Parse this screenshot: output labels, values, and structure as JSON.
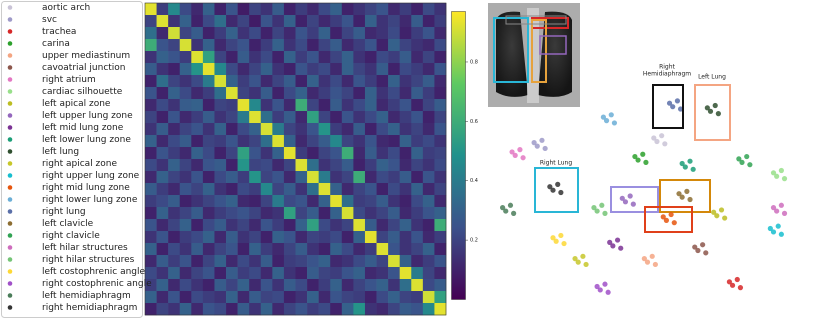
{
  "chart_data": [
    {
      "type": "heatmap",
      "colormap": "viridis",
      "clim": [
        0,
        0.97
      ],
      "cticks": [
        0.2,
        0.4,
        0.6,
        0.8
      ],
      "values": [
        [
          0.93,
          0.18,
          0.45,
          0.22,
          0.12,
          0.3,
          0.1,
          0.25,
          0.08,
          0.2,
          0.15,
          0.28,
          0.1,
          0.18,
          0.12,
          0.22,
          0.3,
          0.1,
          0.15,
          0.2,
          0.25,
          0.12,
          0.18,
          0.1,
          0.22,
          0.15
        ],
        [
          0.2,
          0.92,
          0.15,
          0.3,
          0.1,
          0.22,
          0.35,
          0.12,
          0.2,
          0.08,
          0.25,
          0.15,
          0.3,
          0.1,
          0.2,
          0.12,
          0.18,
          0.25,
          0.1,
          0.3,
          0.15,
          0.2,
          0.12,
          0.28,
          0.1,
          0.18
        ],
        [
          0.35,
          0.12,
          0.9,
          0.2,
          0.28,
          0.1,
          0.18,
          0.3,
          0.15,
          0.22,
          0.1,
          0.2,
          0.12,
          0.25,
          0.18,
          0.3,
          0.1,
          0.2,
          0.28,
          0.12,
          0.15,
          0.22,
          0.1,
          0.18,
          0.25,
          0.12
        ],
        [
          0.6,
          0.25,
          0.2,
          0.91,
          0.15,
          0.3,
          0.12,
          0.2,
          0.25,
          0.1,
          0.18,
          0.3,
          0.15,
          0.22,
          0.1,
          0.2,
          0.28,
          0.12,
          0.18,
          0.25,
          0.1,
          0.3,
          0.2,
          0.15,
          0.12,
          0.22
        ],
        [
          0.15,
          0.3,
          0.25,
          0.18,
          0.92,
          0.55,
          0.2,
          0.1,
          0.28,
          0.15,
          0.22,
          0.1,
          0.3,
          0.18,
          0.25,
          0.12,
          0.2,
          0.3,
          0.15,
          0.1,
          0.22,
          0.18,
          0.28,
          0.12,
          0.2,
          0.1
        ],
        [
          0.28,
          0.15,
          0.1,
          0.3,
          0.5,
          0.93,
          0.45,
          0.22,
          0.12,
          0.2,
          0.3,
          0.15,
          0.1,
          0.25,
          0.18,
          0.22,
          0.12,
          0.3,
          0.2,
          0.15,
          0.28,
          0.1,
          0.22,
          0.18,
          0.12,
          0.25
        ],
        [
          0.1,
          0.35,
          0.2,
          0.15,
          0.22,
          0.4,
          0.91,
          0.3,
          0.18,
          0.25,
          0.12,
          0.2,
          0.28,
          0.1,
          0.3,
          0.15,
          0.22,
          0.12,
          0.25,
          0.18,
          0.1,
          0.3,
          0.15,
          0.2,
          0.28,
          0.12
        ],
        [
          0.25,
          0.1,
          0.3,
          0.22,
          0.12,
          0.18,
          0.35,
          0.92,
          0.2,
          0.15,
          0.28,
          0.1,
          0.22,
          0.3,
          0.12,
          0.18,
          0.25,
          0.2,
          0.1,
          0.3,
          0.15,
          0.22,
          0.12,
          0.28,
          0.18,
          0.1
        ],
        [
          0.12,
          0.22,
          0.15,
          0.28,
          0.3,
          0.1,
          0.2,
          0.18,
          0.93,
          0.45,
          0.15,
          0.25,
          0.12,
          0.6,
          0.2,
          0.1,
          0.28,
          0.15,
          0.22,
          0.3,
          0.12,
          0.18,
          0.25,
          0.1,
          0.2,
          0.28
        ],
        [
          0.2,
          0.1,
          0.25,
          0.12,
          0.18,
          0.28,
          0.15,
          0.2,
          0.4,
          0.92,
          0.35,
          0.18,
          0.28,
          0.12,
          0.55,
          0.2,
          0.1,
          0.25,
          0.15,
          0.22,
          0.3,
          0.12,
          0.18,
          0.25,
          0.1,
          0.2
        ],
        [
          0.15,
          0.28,
          0.12,
          0.2,
          0.25,
          0.15,
          0.3,
          0.1,
          0.22,
          0.3,
          0.91,
          0.4,
          0.2,
          0.15,
          0.25,
          0.5,
          0.18,
          0.12,
          0.28,
          0.1,
          0.22,
          0.3,
          0.15,
          0.2,
          0.12,
          0.25
        ],
        [
          0.3,
          0.12,
          0.22,
          0.28,
          0.1,
          0.2,
          0.18,
          0.25,
          0.15,
          0.2,
          0.35,
          0.92,
          0.3,
          0.12,
          0.2,
          0.28,
          0.45,
          0.2,
          0.15,
          0.25,
          0.12,
          0.1,
          0.3,
          0.18,
          0.22,
          0.15
        ],
        [
          0.1,
          0.25,
          0.18,
          0.12,
          0.3,
          0.22,
          0.1,
          0.2,
          0.55,
          0.25,
          0.15,
          0.3,
          0.93,
          0.18,
          0.1,
          0.2,
          0.25,
          0.6,
          0.12,
          0.28,
          0.15,
          0.22,
          0.1,
          0.3,
          0.18,
          0.2
        ],
        [
          0.22,
          0.15,
          0.3,
          0.2,
          0.12,
          0.25,
          0.28,
          0.1,
          0.5,
          0.2,
          0.22,
          0.12,
          0.2,
          0.92,
          0.35,
          0.15,
          0.2,
          0.28,
          0.1,
          0.18,
          0.3,
          0.25,
          0.12,
          0.2,
          0.15,
          0.22
        ],
        [
          0.12,
          0.3,
          0.2,
          0.15,
          0.25,
          0.1,
          0.22,
          0.28,
          0.18,
          0.5,
          0.2,
          0.25,
          0.12,
          0.3,
          0.91,
          0.4,
          0.15,
          0.2,
          0.6,
          0.12,
          0.22,
          0.18,
          0.28,
          0.1,
          0.25,
          0.15
        ],
        [
          0.28,
          0.18,
          0.12,
          0.25,
          0.2,
          0.3,
          0.15,
          0.1,
          0.22,
          0.18,
          0.45,
          0.2,
          0.28,
          0.15,
          0.35,
          0.92,
          0.3,
          0.12,
          0.2,
          0.25,
          0.1,
          0.22,
          0.15,
          0.3,
          0.12,
          0.2
        ],
        [
          0.18,
          0.22,
          0.28,
          0.1,
          0.15,
          0.2,
          0.25,
          0.3,
          0.12,
          0.1,
          0.2,
          0.4,
          0.22,
          0.25,
          0.12,
          0.3,
          0.93,
          0.35,
          0.18,
          0.2,
          0.28,
          0.15,
          0.1,
          0.22,
          0.3,
          0.12
        ],
        [
          0.1,
          0.3,
          0.15,
          0.2,
          0.28,
          0.12,
          0.18,
          0.22,
          0.25,
          0.2,
          0.12,
          0.15,
          0.55,
          0.2,
          0.28,
          0.1,
          0.3,
          0.91,
          0.22,
          0.15,
          0.2,
          0.28,
          0.12,
          0.18,
          0.25,
          0.3
        ],
        [
          0.25,
          0.12,
          0.2,
          0.3,
          0.1,
          0.22,
          0.28,
          0.15,
          0.2,
          0.12,
          0.25,
          0.18,
          0.1,
          0.3,
          0.55,
          0.22,
          0.15,
          0.2,
          0.92,
          0.28,
          0.12,
          0.2,
          0.3,
          0.15,
          0.1,
          0.6
        ],
        [
          0.15,
          0.25,
          0.1,
          0.18,
          0.22,
          0.3,
          0.12,
          0.28,
          0.15,
          0.2,
          0.1,
          0.3,
          0.25,
          0.12,
          0.2,
          0.18,
          0.22,
          0.1,
          0.3,
          0.93,
          0.2,
          0.28,
          0.15,
          0.25,
          0.12,
          0.18
        ],
        [
          0.3,
          0.1,
          0.22,
          0.15,
          0.28,
          0.12,
          0.2,
          0.25,
          0.1,
          0.3,
          0.18,
          0.12,
          0.2,
          0.28,
          0.15,
          0.1,
          0.3,
          0.22,
          0.12,
          0.18,
          0.92,
          0.25,
          0.15,
          0.2,
          0.3,
          0.1
        ],
        [
          0.12,
          0.28,
          0.18,
          0.25,
          0.1,
          0.2,
          0.3,
          0.12,
          0.22,
          0.15,
          0.28,
          0.1,
          0.18,
          0.2,
          0.25,
          0.3,
          0.12,
          0.15,
          0.22,
          0.28,
          0.2,
          0.91,
          0.3,
          0.12,
          0.18,
          0.25
        ],
        [
          0.22,
          0.15,
          0.3,
          0.12,
          0.2,
          0.25,
          0.1,
          0.28,
          0.18,
          0.22,
          0.12,
          0.3,
          0.15,
          0.1,
          0.28,
          0.2,
          0.18,
          0.25,
          0.3,
          0.12,
          0.15,
          0.25,
          0.93,
          0.4,
          0.2,
          0.12
        ],
        [
          0.18,
          0.3,
          0.12,
          0.22,
          0.15,
          0.1,
          0.28,
          0.2,
          0.3,
          0.12,
          0.25,
          0.15,
          0.28,
          0.22,
          0.1,
          0.18,
          0.3,
          0.12,
          0.2,
          0.25,
          0.3,
          0.15,
          0.35,
          0.92,
          0.22,
          0.28
        ],
        [
          0.3,
          0.12,
          0.25,
          0.1,
          0.22,
          0.18,
          0.15,
          0.3,
          0.12,
          0.28,
          0.2,
          0.22,
          0.1,
          0.15,
          0.3,
          0.12,
          0.25,
          0.2,
          0.18,
          0.1,
          0.22,
          0.3,
          0.2,
          0.18,
          0.9,
          0.55
        ],
        [
          0.1,
          0.2,
          0.15,
          0.3,
          0.12,
          0.25,
          0.22,
          0.1,
          0.28,
          0.15,
          0.3,
          0.12,
          0.2,
          0.25,
          0.18,
          0.22,
          0.1,
          0.3,
          0.5,
          0.15,
          0.12,
          0.2,
          0.28,
          0.25,
          0.45,
          0.93
        ]
      ]
    },
    {
      "type": "scatter",
      "legend": "left",
      "xlim": [
        0,
        100
      ],
      "ylim": [
        0,
        100
      ],
      "annotations": [
        [
          "Right",
          "Hemidiaphragm"
        ],
        [
          "Left Lung"
        ],
        [
          "Right Lung"
        ]
      ],
      "series": [
        {
          "name": "aortic arch",
          "color": "#c9c3d6",
          "x": [
            52,
            55.5,
            54.5,
            53
          ],
          "y": [
            75,
            72.5,
            76,
            73.5
          ]
        },
        {
          "name": "svc",
          "color": "#9e9ac8",
          "x": [
            14,
            17.5,
            16.5,
            15
          ],
          "y": [
            73,
            70.5,
            74,
            71.5
          ]
        },
        {
          "name": "trachea",
          "color": "#d62728",
          "x": [
            76,
            79.5,
            78.5,
            77
          ],
          "y": [
            13,
            10.5,
            14,
            11.5
          ]
        },
        {
          "name": "carina",
          "color": "#2ca02c",
          "x": [
            46,
            49.5,
            48.5,
            47
          ],
          "y": [
            67,
            64.5,
            68,
            65.5
          ]
        },
        {
          "name": "upper mediastinum",
          "color": "#f4a582",
          "x": [
            49,
            52.5,
            51.5,
            50
          ],
          "y": [
            23,
            20.5,
            24,
            21.5
          ]
        },
        {
          "name": "cavoatrial junction",
          "color": "#8c564b",
          "x": [
            65,
            68.5,
            67.5,
            66
          ],
          "y": [
            28,
            25.5,
            29,
            26.5
          ]
        },
        {
          "name": "right atrium",
          "color": "#e377c2",
          "x": [
            7,
            10.5,
            9.5,
            8
          ],
          "y": [
            69,
            66.5,
            70,
            67.5
          ]
        },
        {
          "name": "cardiac silhouette",
          "color": "#98df8a",
          "x": [
            90,
            93.5,
            92.5,
            91
          ],
          "y": [
            60,
            57.5,
            61,
            58.5
          ]
        },
        {
          "name": "left apical zone",
          "color": "#bcbd22",
          "x": [
            71,
            74.5,
            73.5,
            72
          ],
          "y": [
            43,
            40.5,
            44,
            41.5
          ]
        },
        {
          "name": "left upper lung zone",
          "color": "#9467bd",
          "x": [
            42,
            45.5,
            44.5,
            43
          ],
          "y": [
            49,
            46.5,
            50,
            47.5
          ]
        },
        {
          "name": "left mid lung zone",
          "color": "#7b3294",
          "x": [
            38,
            41.5,
            40.5,
            39
          ],
          "y": [
            30,
            27.5,
            31,
            28.5
          ]
        },
        {
          "name": "left lower lung zone",
          "color": "#1b9e77",
          "x": [
            61,
            64.5,
            63.5,
            62
          ],
          "y": [
            64,
            61.5,
            65,
            62.5
          ]
        },
        {
          "name": "left lung",
          "color": "#2f4f2f",
          "x": [
            69,
            72.5,
            71.5,
            70
          ],
          "y": [
            88,
            85.5,
            89,
            86.5
          ]
        },
        {
          "name": "right apical zone",
          "color": "#c7c72a",
          "x": [
            27,
            30.5,
            29.5,
            28
          ],
          "y": [
            23,
            20.5,
            24,
            21.5
          ]
        },
        {
          "name": "right upper lung zone",
          "color": "#17becf",
          "x": [
            89,
            92.5,
            91.5,
            90
          ],
          "y": [
            36,
            33.5,
            37,
            34.5
          ]
        },
        {
          "name": "right mid lung zone",
          "color": "#e6550d",
          "x": [
            55,
            58.5,
            57.5,
            56
          ],
          "y": [
            41,
            38.5,
            42,
            39.5
          ]
        },
        {
          "name": "right lower lung zone",
          "color": "#6baed6",
          "x": [
            36,
            39.5,
            38.5,
            37
          ],
          "y": [
            84,
            81.5,
            85,
            82.5
          ]
        },
        {
          "name": "right lung",
          "color": "#5a6fa8",
          "x": [
            57,
            60.5,
            59.5,
            58
          ],
          "y": [
            90,
            87.5,
            91,
            88.5
          ]
        },
        {
          "name": "left clavicle",
          "color": "#8c6d31",
          "x": [
            60,
            63.5,
            62.5,
            61
          ],
          "y": [
            51,
            48.5,
            52,
            49.5
          ]
        },
        {
          "name": "right clavicle",
          "color": "#31a354",
          "x": [
            79,
            82.5,
            81.5,
            80
          ],
          "y": [
            66,
            63.5,
            67,
            64.5
          ]
        },
        {
          "name": "left hilar structures",
          "color": "#ce6dbd",
          "x": [
            90,
            93.5,
            92.5,
            91
          ],
          "y": [
            45,
            42.5,
            46,
            43.5
          ]
        },
        {
          "name": "right hilar structures",
          "color": "#74c476",
          "x": [
            33,
            36.5,
            35.5,
            34
          ],
          "y": [
            45,
            42.5,
            46,
            43.5
          ]
        },
        {
          "name": "left costophrenic angle",
          "color": "#fdd835",
          "x": [
            20,
            23.5,
            22.5,
            21
          ],
          "y": [
            32,
            29.5,
            33,
            30.5
          ]
        },
        {
          "name": "right costophrenic angle",
          "color": "#a050c8",
          "x": [
            34,
            37.5,
            36.5,
            35
          ],
          "y": [
            11,
            8.5,
            12,
            9.5
          ]
        },
        {
          "name": "left hemidiaphragm",
          "color": "#4a7c59",
          "x": [
            4,
            7.5,
            6.5,
            5
          ],
          "y": [
            45,
            42.5,
            46,
            43.5
          ]
        },
        {
          "name": "right hemidiaphragm",
          "color": "#333333",
          "x": [
            19,
            22.5,
            21.5,
            20
          ],
          "y": [
            54,
            51.5,
            55,
            52.5
          ]
        }
      ]
    }
  ]
}
